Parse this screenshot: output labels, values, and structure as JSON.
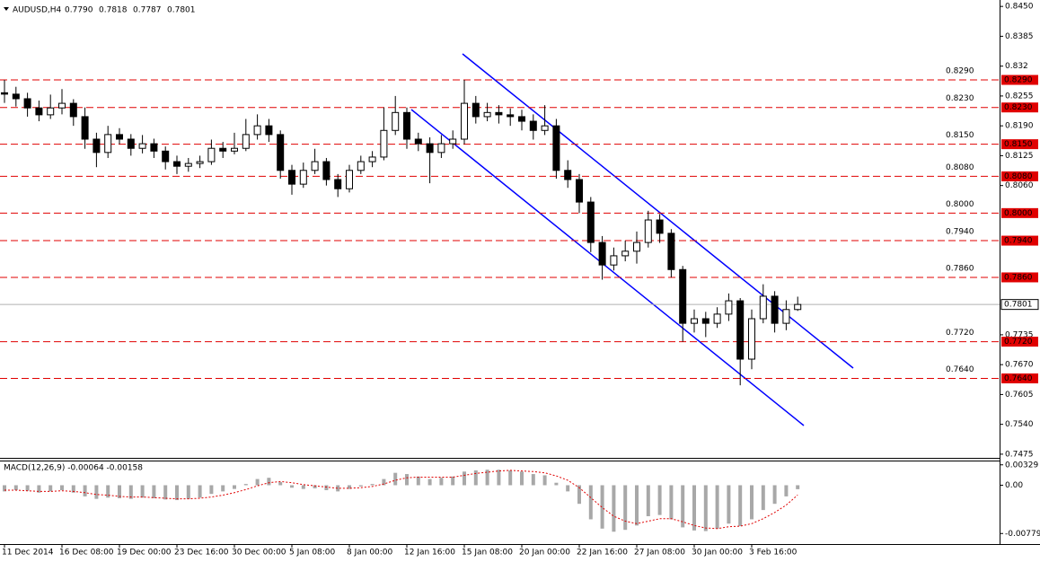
{
  "chart_data": {
    "type": "candlestick",
    "symbol": "AUDUSD,H4",
    "header_ohlc": [
      "0.7790",
      "0.7818",
      "0.7787",
      "0.7801"
    ],
    "ylim": [
      0.7467,
      0.8464
    ],
    "yticks": [
      {
        "value": 0.845,
        "label": "0.8450"
      },
      0.8385,
      0.832,
      0.8255,
      {
        "value": 0.819,
        "label": "0.8190"
      },
      0.8125,
      {
        "value": 0.806,
        "label": "0.8060"
      },
      0.7735,
      {
        "value": 0.767,
        "label": "0.7670"
      },
      0.7605,
      {
        "value": 0.754,
        "label": "0.7540"
      },
      0.7475
    ],
    "levels": [
      {
        "value": 0.829,
        "label": "0.8290"
      },
      {
        "value": 0.823,
        "label": "0.8230"
      },
      {
        "value": 0.815,
        "label": "0.8150"
      },
      {
        "value": 0.808,
        "label": "0.8080"
      },
      {
        "value": 0.8,
        "label": "0.8000"
      },
      {
        "value": 0.794,
        "label": "0.7940"
      },
      {
        "value": 0.786,
        "label": "0.7860"
      },
      {
        "value": 0.772,
        "label": "0.7720"
      },
      {
        "value": 0.764,
        "label": "0.7640"
      }
    ],
    "current_price": 0.7801,
    "level_color": "#e00000",
    "level_label_color": "#f0581e",
    "channel_color": "#0000ff",
    "categories": [
      "11 Dec 2014",
      null,
      null,
      null,
      null,
      "16 Dec 08:00",
      null,
      null,
      null,
      null,
      "19 Dec 00:00",
      null,
      null,
      null,
      null,
      "23 Dec 16:00",
      null,
      null,
      null,
      null,
      "30 Dec 00:00",
      null,
      null,
      null,
      null,
      "5 Jan 08:00",
      null,
      null,
      null,
      null,
      "8 Jan 00:00",
      null,
      null,
      null,
      null,
      "12 Jan 16:00",
      null,
      null,
      null,
      null,
      "15 Jan 08:00",
      null,
      null,
      null,
      null,
      "20 Jan 00:00",
      null,
      null,
      null,
      null,
      "22 Jan 16:00",
      null,
      null,
      null,
      null,
      "27 Jan 08:00",
      null,
      null,
      null,
      null,
      "30 Jan 00:00",
      null,
      null,
      null,
      null,
      "3 Feb 16:00",
      null,
      null,
      null,
      null
    ],
    "candles": [
      [
        0.8262,
        0.829,
        0.824,
        0.8259
      ],
      [
        0.8259,
        0.8275,
        0.8232,
        0.8249
      ],
      [
        0.8249,
        0.8262,
        0.821,
        0.8229
      ],
      [
        0.8229,
        0.8245,
        0.82,
        0.8214
      ],
      [
        0.8214,
        0.8258,
        0.8205,
        0.8229
      ],
      [
        0.8229,
        0.827,
        0.8215,
        0.8239
      ],
      [
        0.8239,
        0.8248,
        0.819,
        0.821
      ],
      [
        0.821,
        0.823,
        0.814,
        0.8161
      ],
      [
        0.8161,
        0.8175,
        0.81,
        0.8132
      ],
      [
        0.8132,
        0.819,
        0.812,
        0.8171
      ],
      [
        0.8171,
        0.8185,
        0.815,
        0.8161
      ],
      [
        0.8161,
        0.8172,
        0.8125,
        0.8141
      ],
      [
        0.8141,
        0.817,
        0.813,
        0.8151
      ],
      [
        0.8151,
        0.8162,
        0.812,
        0.8135
      ],
      [
        0.8135,
        0.8145,
        0.8095,
        0.8112
      ],
      [
        0.8112,
        0.8125,
        0.8085,
        0.8102
      ],
      [
        0.8102,
        0.812,
        0.809,
        0.8108
      ],
      [
        0.8108,
        0.8125,
        0.8098,
        0.8112
      ],
      [
        0.8112,
        0.816,
        0.8105,
        0.8141
      ],
      [
        0.8141,
        0.8155,
        0.812,
        0.8135
      ],
      [
        0.8135,
        0.8175,
        0.8128,
        0.8141
      ],
      [
        0.8141,
        0.8205,
        0.8135,
        0.8171
      ],
      [
        0.8171,
        0.8215,
        0.816,
        0.819
      ],
      [
        0.819,
        0.8205,
        0.8155,
        0.8171
      ],
      [
        0.8171,
        0.818,
        0.8075,
        0.8093
      ],
      [
        0.8093,
        0.8105,
        0.804,
        0.8063
      ],
      [
        0.8063,
        0.811,
        0.8055,
        0.8093
      ],
      [
        0.8093,
        0.814,
        0.8085,
        0.8112
      ],
      [
        0.8112,
        0.812,
        0.806,
        0.8073
      ],
      [
        0.8073,
        0.8085,
        0.8035,
        0.8053
      ],
      [
        0.8053,
        0.8105,
        0.8045,
        0.8093
      ],
      [
        0.8093,
        0.8125,
        0.8085,
        0.8112
      ],
      [
        0.8112,
        0.8135,
        0.81,
        0.8122
      ],
      [
        0.8122,
        0.823,
        0.8115,
        0.818
      ],
      [
        0.818,
        0.8255,
        0.817,
        0.8219
      ],
      [
        0.8219,
        0.823,
        0.814,
        0.8161
      ],
      [
        0.8161,
        0.8175,
        0.8135,
        0.8151
      ],
      [
        0.8151,
        0.8165,
        0.8065,
        0.8132
      ],
      [
        0.8132,
        0.817,
        0.812,
        0.8151
      ],
      [
        0.8151,
        0.818,
        0.814,
        0.8161
      ],
      [
        0.8161,
        0.829,
        0.815,
        0.8239
      ],
      [
        0.8239,
        0.8255,
        0.8195,
        0.821
      ],
      [
        0.821,
        0.824,
        0.82,
        0.8219
      ],
      [
        0.8219,
        0.8235,
        0.8195,
        0.8214
      ],
      [
        0.8214,
        0.8228,
        0.819,
        0.821
      ],
      [
        0.821,
        0.8225,
        0.818,
        0.82
      ],
      [
        0.82,
        0.8215,
        0.816,
        0.818
      ],
      [
        0.818,
        0.8235,
        0.817,
        0.819
      ],
      [
        0.819,
        0.8205,
        0.8075,
        0.8093
      ],
      [
        0.8093,
        0.8115,
        0.8055,
        0.8073
      ],
      [
        0.8073,
        0.8085,
        0.8,
        0.8024
      ],
      [
        0.8024,
        0.8035,
        0.7915,
        0.7936
      ],
      [
        0.7936,
        0.795,
        0.7855,
        0.7887
      ],
      [
        0.7887,
        0.7925,
        0.7875,
        0.7907
      ],
      [
        0.7907,
        0.794,
        0.7895,
        0.7917
      ],
      [
        0.7917,
        0.796,
        0.789,
        0.7936
      ],
      [
        0.7936,
        0.8005,
        0.7925,
        0.7985
      ],
      [
        0.7985,
        0.7998,
        0.7935,
        0.7956
      ],
      [
        0.7956,
        0.7965,
        0.786,
        0.7877
      ],
      [
        0.7877,
        0.7885,
        0.772,
        0.776
      ],
      [
        0.776,
        0.779,
        0.774,
        0.777
      ],
      [
        0.777,
        0.7785,
        0.773,
        0.776
      ],
      [
        0.776,
        0.7795,
        0.775,
        0.778
      ],
      [
        0.778,
        0.7825,
        0.7765,
        0.7809
      ],
      [
        0.7809,
        0.7815,
        0.7625,
        0.7682
      ],
      [
        0.7682,
        0.779,
        0.766,
        0.777
      ],
      [
        0.777,
        0.7845,
        0.776,
        0.7819
      ],
      [
        0.7819,
        0.783,
        0.774,
        0.776
      ],
      [
        0.776,
        0.781,
        0.7745,
        0.779
      ],
      [
        0.779,
        0.7818,
        0.7787,
        0.7801
      ]
    ],
    "macd": {
      "label": "MACD(12,26,9) -0.00064 -0.00158",
      "ylim": [
        -0.0092,
        0.0034
      ],
      "yticks": [
        0.00329,
        {
          "value": 0,
          "label": "0.00"
        },
        -0.00779
      ],
      "hist_color": "#a8a8a8",
      "signal_color": "#e00000",
      "histogram": [
        -0.001,
        -0.0008,
        -0.0009,
        -0.0012,
        -0.001,
        -0.0008,
        -0.0012,
        -0.0018,
        -0.0022,
        -0.002,
        -0.0021,
        -0.0022,
        -0.002,
        -0.0021,
        -0.0023,
        -0.0024,
        -0.0022,
        -0.002,
        -0.0014,
        -0.001,
        -0.0006,
        0.0002,
        0.001,
        0.0012,
        0.0005,
        -0.0004,
        -0.0006,
        -0.0005,
        -0.0008,
        -0.001,
        -0.0006,
        -0.0002,
        0.0002,
        0.001,
        0.002,
        0.0018,
        0.0014,
        0.001,
        0.0012,
        0.0014,
        0.0022,
        0.0024,
        0.0025,
        0.0025,
        0.0024,
        0.0022,
        0.0018,
        0.0016,
        0.0004,
        -0.001,
        -0.003,
        -0.0055,
        -0.007,
        -0.0075,
        -0.0072,
        -0.0065,
        -0.005,
        -0.0048,
        -0.0055,
        -0.0068,
        -0.0073,
        -0.0074,
        -0.007,
        -0.0062,
        -0.0066,
        -0.0055,
        -0.004,
        -0.003,
        -0.0018,
        -0.00064
      ],
      "signal": [
        -0.0008,
        -0.0008,
        -0.0009,
        -0.001,
        -0.001,
        -0.0009,
        -0.001,
        -0.0012,
        -0.0015,
        -0.0016,
        -0.0018,
        -0.0019,
        -0.0019,
        -0.002,
        -0.0021,
        -0.0022,
        -0.0022,
        -0.0021,
        -0.0019,
        -0.0016,
        -0.0012,
        -0.0007,
        -0.0001,
        0.0004,
        0.0006,
        0.0004,
        0.0001,
        -0.0001,
        -0.0003,
        -0.0005,
        -0.0005,
        -0.0004,
        -0.0002,
        0.0002,
        0.0008,
        0.0012,
        0.0013,
        0.0013,
        0.0013,
        0.0013,
        0.0016,
        0.0019,
        0.0021,
        0.0023,
        0.0024,
        0.0023,
        0.0022,
        0.002,
        0.0015,
        0.0008,
        -0.0004,
        -0.002,
        -0.0036,
        -0.005,
        -0.0058,
        -0.0062,
        -0.0058,
        -0.0054,
        -0.0054,
        -0.0059,
        -0.0065,
        -0.0069,
        -0.007,
        -0.0067,
        -0.0066,
        -0.0062,
        -0.0054,
        -0.0044,
        -0.0032,
        -0.00158
      ]
    }
  }
}
